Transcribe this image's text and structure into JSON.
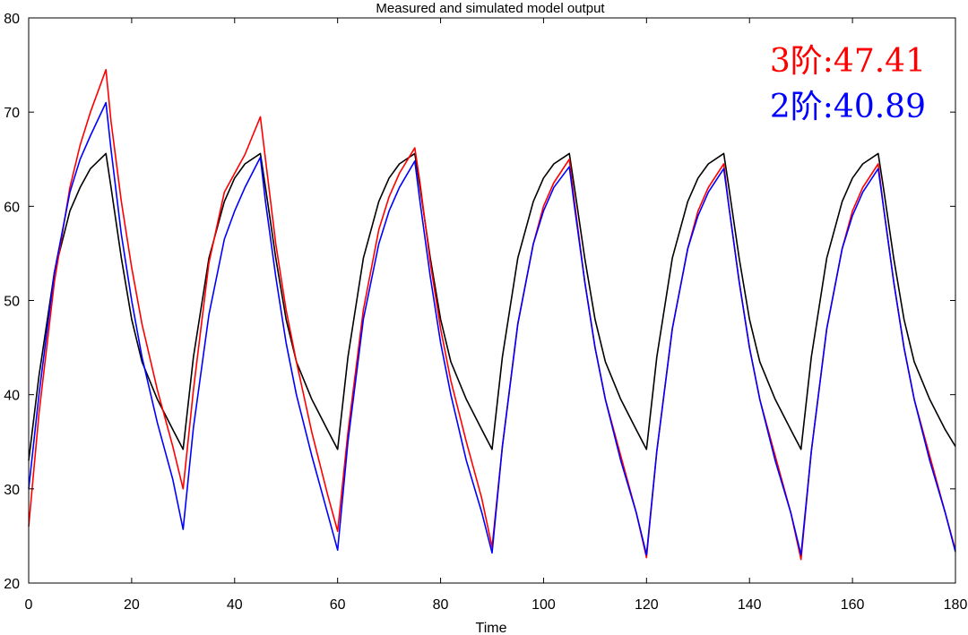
{
  "chart_data": {
    "type": "line",
    "title": "Measured and simulated model output",
    "xlabel": "Time",
    "ylabel": "",
    "xlim": [
      0,
      180
    ],
    "ylim": [
      20,
      80
    ],
    "xticks": [
      0,
      20,
      40,
      60,
      80,
      100,
      120,
      140,
      160,
      180
    ],
    "yticks": [
      20,
      30,
      40,
      50,
      60,
      70,
      80
    ],
    "grid": false,
    "annotations": [
      {
        "text": "3阶:47.41",
        "color": "#ff0000"
      },
      {
        "text": "2阶:40.89",
        "color": "#0000ff"
      }
    ],
    "series": [
      {
        "name": "measured",
        "color": "#000000",
        "x": [
          0,
          2,
          5,
          8,
          10,
          12,
          15,
          16,
          18,
          20,
          22,
          25,
          28,
          30,
          32,
          35,
          38,
          40,
          42,
          45,
          46,
          48,
          50,
          52,
          55,
          58,
          60,
          62,
          65,
          68,
          70,
          72,
          75,
          76,
          78,
          80,
          82,
          85,
          88,
          90,
          92,
          95,
          98,
          100,
          102,
          105,
          106,
          108,
          110,
          112,
          115,
          118,
          120,
          122,
          125,
          128,
          130,
          132,
          135,
          136,
          138,
          140,
          142,
          145,
          148,
          150,
          152,
          155,
          158,
          160,
          162,
          165,
          166,
          168,
          170,
          172,
          175,
          178,
          180
        ],
        "y": [
          33,
          42,
          53,
          59.5,
          62,
          64,
          65.6,
          62,
          54.5,
          48,
          43.5,
          39.5,
          36.3,
          34.2,
          44,
          54.5,
          60.5,
          63,
          64.5,
          65.6,
          62,
          54.5,
          48,
          43.5,
          39.5,
          36.3,
          34.2,
          44,
          54.5,
          60.5,
          63,
          64.5,
          65.6,
          62,
          54.5,
          48,
          43.5,
          39.5,
          36.3,
          34.2,
          44,
          54.5,
          60.5,
          63,
          64.5,
          65.6,
          62,
          54.5,
          48,
          43.5,
          39.5,
          36.3,
          34.2,
          44,
          54.5,
          60.5,
          63,
          64.5,
          65.6,
          62,
          54.5,
          48,
          43.5,
          39.5,
          36.3,
          34.2,
          44,
          54.5,
          60.5,
          63,
          64.5,
          65.6,
          62,
          54.5,
          48,
          43.5,
          39.5,
          36.3,
          34.5
        ]
      },
      {
        "name": "3阶",
        "color": "#ff0000",
        "x": [
          0,
          2,
          5,
          8,
          10,
          12,
          15,
          16,
          18,
          20,
          22,
          25,
          28,
          30,
          32,
          35,
          38,
          40,
          42,
          45,
          46,
          48,
          50,
          52,
          55,
          58,
          60,
          62,
          65,
          68,
          70,
          72,
          75,
          76,
          78,
          80,
          82,
          85,
          88,
          90,
          92,
          95,
          98,
          100,
          102,
          105,
          106,
          108,
          110,
          112,
          115,
          118,
          120,
          122,
          125,
          128,
          130,
          132,
          135,
          136,
          138,
          140,
          142,
          145,
          148,
          150,
          152,
          155,
          158,
          160,
          162,
          165,
          166,
          168,
          170,
          172,
          175,
          178,
          180
        ],
        "y": [
          26,
          38,
          52,
          62,
          66.5,
          70,
          74.5,
          69,
          60.5,
          53.5,
          47.5,
          40.5,
          34.5,
          30,
          40.5,
          54,
          61.5,
          63.5,
          65.5,
          69.5,
          65,
          56,
          49,
          43.5,
          36,
          29.5,
          25.5,
          36,
          49,
          57.5,
          61,
          63.5,
          66.2,
          62.5,
          54,
          47,
          41.5,
          35,
          29,
          23.8,
          34.5,
          47.5,
          56,
          60,
          62.5,
          65,
          60.5,
          52,
          45,
          39.5,
          33.5,
          27.5,
          22.7,
          34,
          47,
          55.5,
          59.5,
          62,
          64.5,
          60,
          52,
          45,
          39.5,
          33.5,
          27.5,
          22.5,
          34,
          47,
          55.5,
          59.5,
          62,
          64.5,
          60,
          52,
          45,
          39.5,
          33.5,
          27.5,
          23.5
        ]
      },
      {
        "name": "2阶",
        "color": "#0000ff",
        "x": [
          0,
          2,
          5,
          8,
          10,
          12,
          15,
          16,
          18,
          20,
          22,
          25,
          28,
          30,
          32,
          35,
          38,
          40,
          42,
          45,
          46,
          48,
          50,
          52,
          55,
          58,
          60,
          62,
          65,
          68,
          70,
          72,
          75,
          76,
          78,
          80,
          82,
          85,
          88,
          90,
          92,
          95,
          98,
          100,
          102,
          105,
          106,
          108,
          110,
          112,
          115,
          118,
          120,
          122,
          125,
          128,
          130,
          132,
          135,
          136,
          138,
          140,
          142,
          145,
          148,
          150,
          152,
          155,
          158,
          160,
          162,
          165,
          166,
          168,
          170,
          172,
          175,
          178,
          180
        ],
        "y": [
          30,
          40,
          53,
          61.5,
          65,
          67.5,
          71,
          66,
          57,
          50,
          44,
          37,
          31,
          25.7,
          36.5,
          48.5,
          56.5,
          59.5,
          62,
          65.2,
          60.5,
          52.5,
          45.5,
          40,
          33.5,
          27.5,
          23.5,
          35,
          48,
          56,
          59.5,
          62,
          64.8,
          60.5,
          52.5,
          45.5,
          40,
          33,
          27.5,
          23.2,
          34.5,
          47.5,
          56,
          59.5,
          62,
          64.2,
          60,
          52,
          45,
          39.5,
          33,
          27.5,
          23,
          34,
          47,
          55.5,
          59,
          61.5,
          64,
          60,
          52,
          45,
          39.5,
          33,
          27.5,
          23,
          34,
          47,
          55.5,
          59,
          61.5,
          64,
          60,
          52,
          45,
          39.5,
          33,
          27.5,
          23.3
        ]
      }
    ]
  }
}
